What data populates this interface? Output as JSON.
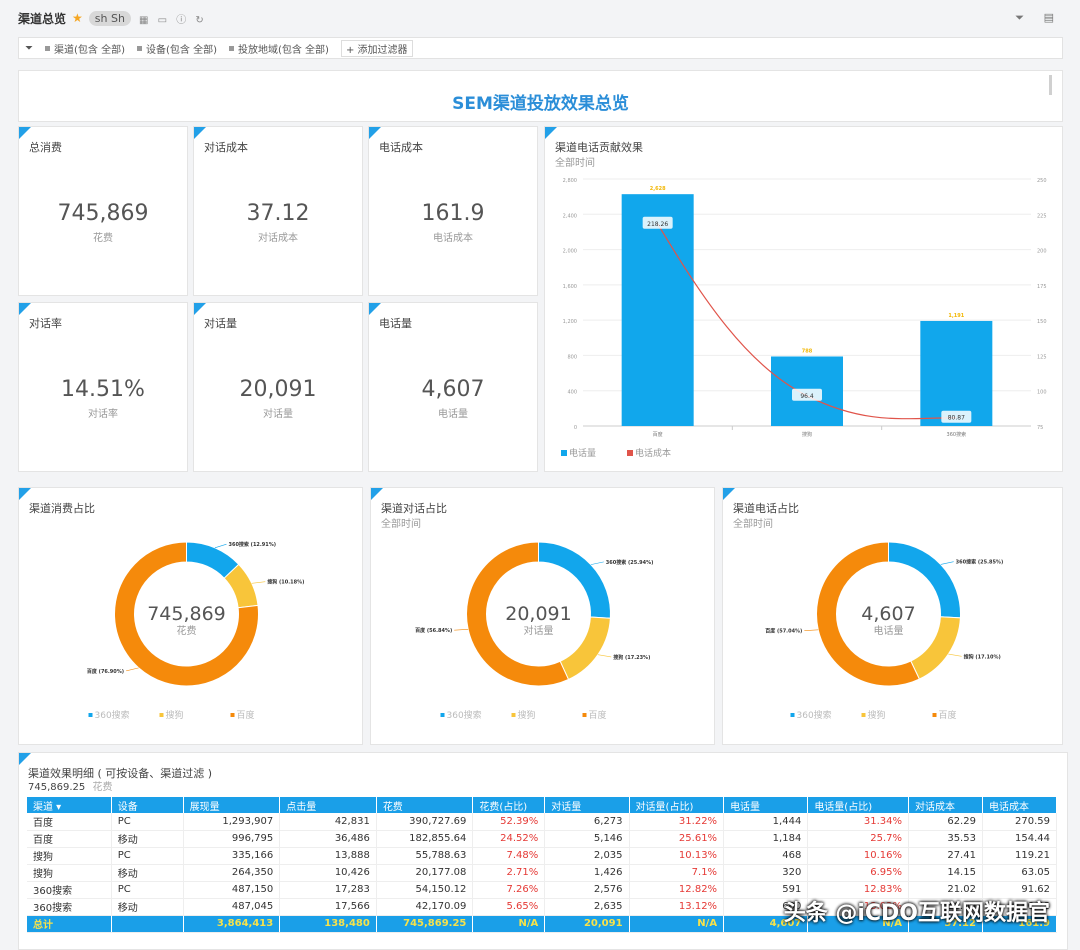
{
  "header": {
    "title": "渠道总览",
    "avatar": "sh Sh"
  },
  "filters": {
    "items": [
      "渠道(包含 全部)",
      "设备(包含 全部)",
      "投放地域(包含 全部)"
    ],
    "add_label": "+ 添加过滤器"
  },
  "banner": {
    "title": "SEM渠道投放效果总览"
  },
  "kpis": [
    {
      "label": "总消费",
      "value": "745,869",
      "sub": "花费"
    },
    {
      "label": "对话成本",
      "value": "37.12",
      "sub": "对话成本"
    },
    {
      "label": "电话成本",
      "value": "161.9",
      "sub": "电话成本"
    },
    {
      "label": "对话率",
      "value": "14.51%",
      "sub": "对话率"
    },
    {
      "label": "对话量",
      "value": "20,091",
      "sub": "对话量"
    },
    {
      "label": "电话量",
      "value": "4,607",
      "sub": "电话量"
    }
  ],
  "combo": {
    "title": "渠道电话贡献效果",
    "subtitle": "全部时间"
  },
  "donuts": [
    {
      "title": "渠道消费占比",
      "subtitle": "",
      "center_value": "745,869",
      "center_sub": "花费"
    },
    {
      "title": "渠道对话占比",
      "subtitle": "全部时间",
      "center_value": "20,091",
      "center_sub": "对话量"
    },
    {
      "title": "渠道电话占比",
      "subtitle": "全部时间",
      "center_value": "4,607",
      "center_sub": "电话量"
    }
  ],
  "detail": {
    "title": "渠道效果明细 ( 可按设备、渠道过滤 )",
    "total_value": "745,869.25",
    "total_label": "花费",
    "columns": [
      "渠道 ▾",
      "设备",
      "展现量",
      "点击量",
      "花费",
      "花费(占比)",
      "对话量",
      "对话量(占比)",
      "电话量",
      "电话量(占比)",
      "对话成本",
      "电话成本"
    ],
    "rows": [
      [
        "百度",
        "PC",
        "1,293,907",
        "42,831",
        "390,727.69",
        "52.39%",
        "6,273",
        "31.22%",
        "1,444",
        "31.34%",
        "62.29",
        "270.59"
      ],
      [
        "百度",
        "移动",
        "996,795",
        "36,486",
        "182,855.64",
        "24.52%",
        "5,146",
        "25.61%",
        "1,184",
        "25.7%",
        "35.53",
        "154.44"
      ],
      [
        "搜狗",
        "PC",
        "335,166",
        "13,888",
        "55,788.63",
        "7.48%",
        "2,035",
        "10.13%",
        "468",
        "10.16%",
        "27.41",
        "119.21"
      ],
      [
        "搜狗",
        "移动",
        "264,350",
        "10,426",
        "20,177.08",
        "2.71%",
        "1,426",
        "7.1%",
        "320",
        "6.95%",
        "14.15",
        "63.05"
      ],
      [
        "360搜索",
        "PC",
        "487,150",
        "17,283",
        "54,150.12",
        "7.26%",
        "2,576",
        "12.82%",
        "591",
        "12.83%",
        "21.02",
        "91.62"
      ],
      [
        "360搜索",
        "移动",
        "487,045",
        "17,566",
        "42,170.09",
        "5.65%",
        "2,635",
        "13.12%",
        "600",
        "13.02%",
        "16.00",
        "70.28"
      ]
    ],
    "total_row": [
      "总计",
      "",
      "3,864,413",
      "138,480",
      "745,869.25",
      "N/A",
      "20,091",
      "N/A",
      "4,607",
      "N/A",
      "37.12",
      "161.9"
    ]
  },
  "watermark": "头条 @iCDO互联网数据官",
  "chart_data": [
    {
      "type": "bar",
      "title": "渠道电话贡献效果",
      "subtitle": "全部时间",
      "categories": [
        "百度",
        "搜狗",
        "360搜索"
      ],
      "series": [
        {
          "name": "电话量",
          "kind": "bar",
          "values": [
            2628,
            788,
            1191
          ],
          "axis": "left",
          "color": "#11a7ec"
        },
        {
          "name": "电话成本",
          "kind": "line",
          "values": [
            218.26,
            96.4,
            80.87
          ],
          "axis": "right",
          "color": "#e0544a"
        }
      ],
      "y_left_ticks": [
        "2,800",
        "2,400",
        "2,000",
        "1,600",
        "1,200",
        "800",
        "400",
        "0"
      ],
      "y_right_ticks": [
        "250",
        "225",
        "200",
        "175",
        "150",
        "125",
        "100",
        "75"
      ],
      "ylim_left": [
        0,
        2800
      ],
      "ylim_right": [
        75,
        250
      ],
      "bar_labels": [
        "2,628",
        "788",
        "1,191"
      ],
      "line_labels": [
        "218.26",
        "96.4",
        "80.87"
      ],
      "legend": [
        "电话量",
        "电话成本"
      ]
    },
    {
      "type": "pie",
      "title": "渠道消费占比",
      "labels": [
        "360搜索",
        "搜狗",
        "百度"
      ],
      "values": [
        12.91,
        10.18,
        76.9
      ],
      "slice_labels": [
        "360搜索 (12.91%)",
        "搜狗 (10.18%)",
        "百度 (76.90%)"
      ],
      "colors": [
        "#12a6ec",
        "#f8c53a",
        "#f58a0b"
      ],
      "legend": [
        "360搜索",
        "搜狗",
        "百度"
      ]
    },
    {
      "type": "pie",
      "title": "渠道对话占比",
      "labels": [
        "360搜索",
        "搜狗",
        "百度"
      ],
      "values": [
        25.94,
        17.23,
        56.84
      ],
      "slice_labels": [
        "360搜索 (25.94%)",
        "搜狗 (17.23%)",
        "百度 (56.84%)"
      ],
      "colors": [
        "#12a6ec",
        "#f8c53a",
        "#f58a0b"
      ],
      "legend": [
        "360搜索",
        "搜狗",
        "百度"
      ]
    },
    {
      "type": "pie",
      "title": "渠道电话占比",
      "labels": [
        "360搜索",
        "搜狗",
        "百度"
      ],
      "values": [
        25.85,
        17.1,
        57.04
      ],
      "slice_labels": [
        "360搜索 (25.85%)",
        "搜狗 (17.10%)",
        "百度 (57.04%)"
      ],
      "colors": [
        "#12a6ec",
        "#f8c53a",
        "#f58a0b"
      ],
      "legend": [
        "360搜索",
        "搜狗",
        "百度"
      ]
    }
  ]
}
